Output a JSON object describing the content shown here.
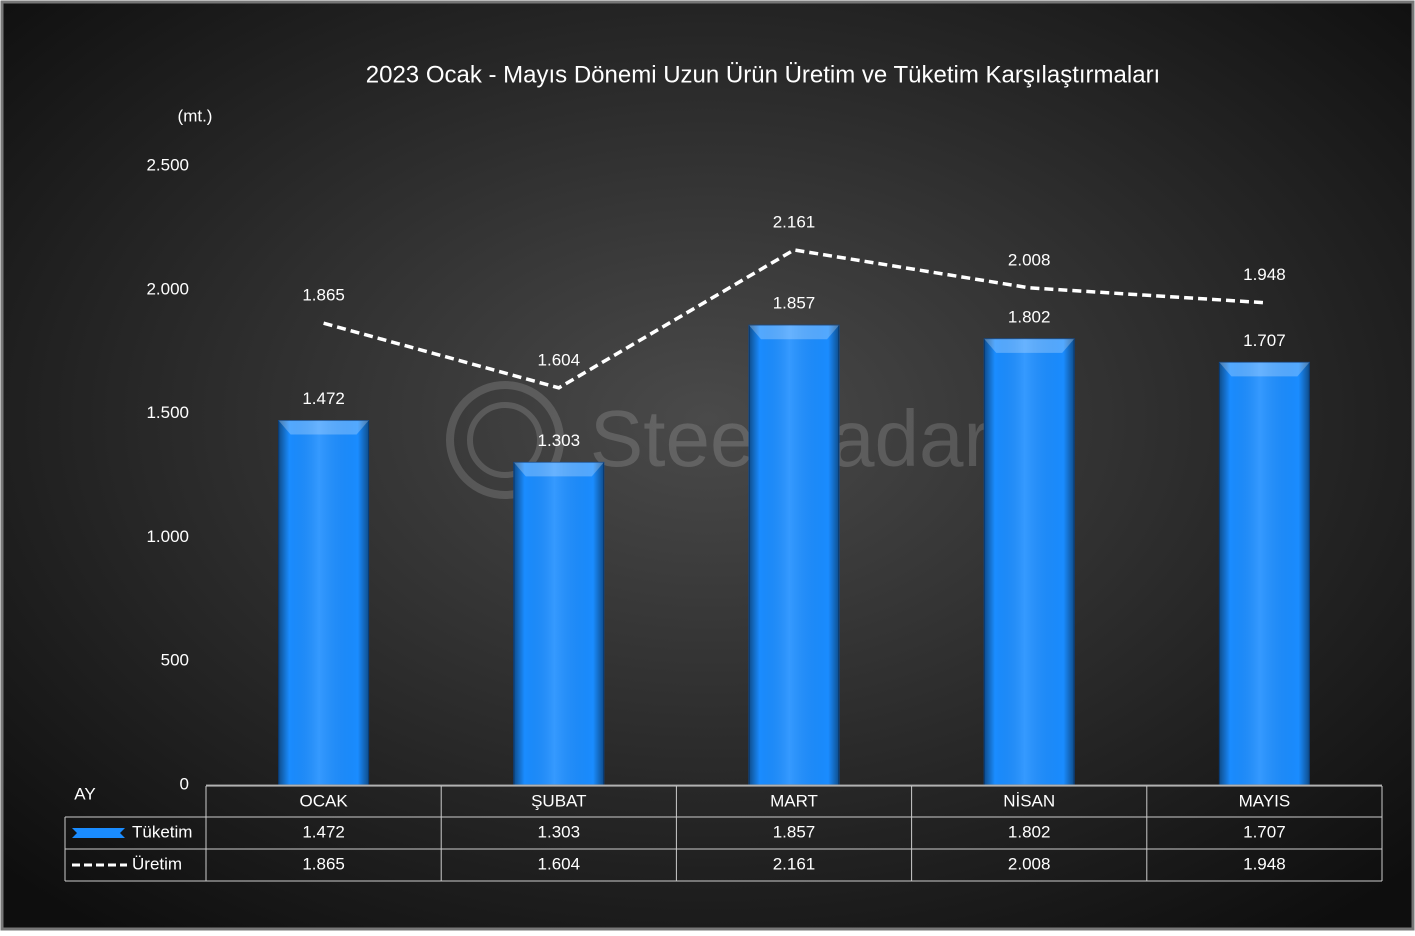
{
  "chart_data": {
    "type": "bar",
    "title": "2023 Ocak - Mayıs Dönemi Uzun Ürün Üretim ve Tüketim Karşılaştırmaları",
    "y_label": "(mt.)",
    "x_label": "AY",
    "watermark": "SteelRadar",
    "categories": [
      "OCAK",
      "ŞUBAT",
      "MART",
      "NİSAN",
      "MAYIS"
    ],
    "series": [
      {
        "name": "Tüketim",
        "type": "bar",
        "color": "#1a8cff",
        "values": [
          1472,
          1303,
          1857,
          1802,
          1707
        ],
        "value_labels": [
          "1.472",
          "1.303",
          "1.857",
          "1.802",
          "1.707"
        ]
      },
      {
        "name": "Üretim",
        "type": "line",
        "color": "#ffffff",
        "values": [
          1865,
          1604,
          2161,
          2008,
          1948
        ],
        "value_labels": [
          "1.865",
          "1.604",
          "2.161",
          "2.008",
          "1.948"
        ]
      }
    ],
    "ylim": [
      0,
      2500
    ],
    "yticks": [
      0,
      500,
      {
        "value": 1000,
        "label": "1.000"
      },
      {
        "value": 1500,
        "label": "1.500"
      },
      {
        "value": 2000,
        "label": "2.000"
      },
      {
        "value": 2500,
        "label": "2.500"
      }
    ],
    "grid": false
  }
}
